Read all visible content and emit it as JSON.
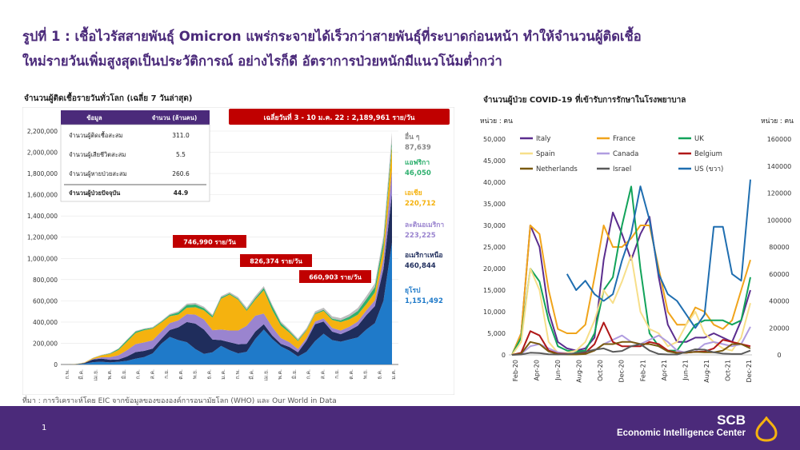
{
  "headline": {
    "line1": "รูปที่ 1 : เชื้อไวรัสสายพันธุ์ Omicron แพร่กระจายได้เร็วกว่าสายพันธุ์ที่ระบาดก่อนหน้า ทำให้จำนวนผู้ติดเชื้อ",
    "line2": "ใหม่รายวันเพิ่มสูงสุดเป็นประวัติการณ์ อย่างไรก็ดี อัตราการป่วยหนักมีแนวโน้มต่ำกว่า"
  },
  "source": "ที่มา : การวิเคราะห์โดย EIC จากข้อมูลของขององค์การอนามัยโลก (WHO) และ Our World in Data",
  "footer": {
    "page": "1",
    "brand": "SCB",
    "brand_sub": "Economic Intelligence Center"
  },
  "colors": {
    "purple": "#4b2a7a",
    "red_label": "#c00000",
    "navy": "#1f2d5c"
  },
  "chart_data": [
    {
      "type": "area",
      "title": "จำนวนผู้ติดเชื้อรายวันทั่วโลก (เฉลี่ย 7 วันล่าสุด)",
      "y_ticks": [
        "0",
        "200,000",
        "400,000",
        "600,000",
        "800,000",
        "1,000,000",
        "1,200,000",
        "1,400,000",
        "1,600,000",
        "1,800,000",
        "2,000,000",
        "2,200,000"
      ],
      "ylim": [
        0,
        2200000
      ],
      "x_ticks": [
        "ก.พ.",
        "มี.ค.",
        "เม.ย.",
        "พ.ค.",
        "มิ.ย.",
        "ก.ค.",
        "ส.ค.",
        "ก.ย.",
        "ต.ค.",
        "พ.ย.",
        "ธ.ค.",
        "ม.ค.",
        "ก.พ.",
        "มี.ค.",
        "เม.ย.",
        "พ.ค.",
        "มิ.ย.",
        "ก.ค.",
        "ส.ค.",
        "ก.ย.",
        "ต.ค.",
        "พ.ย.",
        "ธ.ค.",
        "ม.ค."
      ],
      "series": [
        {
          "name": "ยุโรป",
          "label": "ยุโรป",
          "value": "1,151,492",
          "color": "#1f7ac9",
          "values": [
            0,
            2,
            8,
            22,
            26,
            20,
            25,
            35,
            55,
            70,
            105,
            195,
            260,
            230,
            210,
            145,
            100,
            115,
            175,
            135,
            105,
            120,
            240,
            330,
            240,
            170,
            130,
            75,
            120,
            220,
            290,
            230,
            215,
            235,
            255,
            330,
            390,
            600,
            1150
          ]
        },
        {
          "name": "อเมริกาเหนือ",
          "label": "อเมริกาเหนือ",
          "value": "460,844",
          "color": "#1f2d5c",
          "values": [
            0,
            1,
            5,
            25,
            30,
            24,
            22,
            40,
            62,
            58,
            45,
            45,
            65,
            120,
            190,
            240,
            230,
            120,
            55,
            75,
            85,
            75,
            70,
            50,
            32,
            25,
            35,
            40,
            105,
            160,
            115,
            80,
            70,
            85,
            110,
            135,
            160,
            300,
            461
          ]
        },
        {
          "name": "ละตินอเมริกา",
          "label": "ละตินอเมริกา",
          "value": "223,225",
          "color": "#9a84cf",
          "values": [
            0,
            0,
            1,
            4,
            12,
            25,
            40,
            60,
            75,
            80,
            78,
            70,
            65,
            65,
            75,
            85,
            95,
            88,
            100,
            110,
            130,
            170,
            150,
            100,
            80,
            55,
            45,
            30,
            25,
            25,
            30,
            35,
            35,
            35,
            40,
            45,
            55,
            95,
            223
          ]
        },
        {
          "name": "เอเชีย",
          "label": "เอเชีย",
          "value": "220,712",
          "color": "#f5b20f",
          "values": [
            0,
            2,
            4,
            9,
            18,
            30,
            50,
            80,
            105,
            115,
            110,
            85,
            65,
            55,
            60,
            70,
            85,
            120,
            290,
            340,
            290,
            140,
            150,
            220,
            160,
            115,
            90,
            75,
            70,
            70,
            70,
            75,
            80,
            70,
            65,
            60,
            75,
            110,
            221
          ]
        },
        {
          "name": "แอฟริกา",
          "label": "แอฟริกา",
          "value": "46,050",
          "color": "#2eb06e",
          "values": [
            0,
            0,
            0,
            1,
            2,
            5,
            10,
            15,
            13,
            10,
            8,
            8,
            12,
            20,
            25,
            25,
            20,
            15,
            12,
            10,
            10,
            12,
            15,
            20,
            35,
            25,
            15,
            10,
            8,
            8,
            10,
            12,
            15,
            25,
            35,
            45,
            50,
            60,
            46
          ]
        },
        {
          "name": "อื่น ๆ",
          "label": "อื่น ๆ",
          "value": "87,639",
          "color": "#bdbdbd",
          "values": [
            0,
            0,
            1,
            2,
            3,
            4,
            5,
            6,
            6,
            6,
            7,
            8,
            10,
            12,
            14,
            15,
            14,
            12,
            12,
            12,
            15,
            18,
            20,
            18,
            15,
            15,
            14,
            14,
            15,
            18,
            20,
            22,
            22,
            24,
            28,
            30,
            35,
            50,
            88
          ]
        }
      ],
      "table": {
        "headers": [
          "ข้อมูล",
          "จำนวน (ล้านคน)"
        ],
        "rows": [
          {
            "label": "จำนวนผู้ติดเชื้อสะสม",
            "value": "311.0"
          },
          {
            "label": "จำนวนผู้เสียชีวิตสะสม",
            "value": "5.5"
          },
          {
            "label": "จำนวนผู้หายป่วยสะสม",
            "value": "260.6"
          },
          {
            "label": "จำนวนผู้ป่วยปัจจุบัน",
            "value": "44.9"
          }
        ]
      },
      "banner": "เฉลี่ยวันที่ 3 - 10 ม.ค. 22 : 2,189,961 ราย/วัน",
      "annotations": [
        "746,990 ราย/วัน",
        "826,374 ราย/วัน",
        "660,903 ราย/วัน"
      ]
    },
    {
      "type": "line",
      "title": "จำนวนผู้ป่วย COVID-19 ที่เข้ารับการรักษาในโรงพยาบาล",
      "unit_left": "หน่วย : คน",
      "unit_right": "หน่วย : คน",
      "ylim_left": [
        0,
        50000
      ],
      "ylim_right": [
        0,
        160000
      ],
      "y_ticks_left": [
        "0",
        "5,000",
        "10,000",
        "15,000",
        "20,000",
        "25,000",
        "30,000",
        "35,000",
        "40,000",
        "45,000",
        "50,000"
      ],
      "y_ticks_right": [
        "0",
        "20000",
        "40000",
        "60000",
        "80000",
        "100000",
        "120000",
        "140000",
        "160000"
      ],
      "x_ticks": [
        "Feb-20",
        "Apr-20",
        "Jun-20",
        "Aug-20",
        "Oct-20",
        "Dec-20",
        "Feb-21",
        "Apr-21",
        "Jun-21",
        "Aug-21",
        "Oct-21",
        "Dec-21"
      ],
      "series": [
        {
          "name": "Italy",
          "color": "#5b2d8e",
          "axis": "left",
          "values": [
            0,
            5000,
            30000,
            25000,
            10000,
            3000,
            1500,
            1000,
            1500,
            4000,
            22000,
            33000,
            28000,
            22000,
            28000,
            32000,
            18000,
            7000,
            3000,
            3000,
            4000,
            4000,
            5000,
            4000,
            3000,
            8000,
            15000
          ]
        },
        {
          "name": "France",
          "color": "#f0a41b",
          "axis": "left",
          "values": [
            0,
            5000,
            30000,
            28000,
            15000,
            6000,
            5000,
            5000,
            7000,
            18000,
            30000,
            25000,
            25000,
            27000,
            30000,
            30000,
            20000,
            10000,
            7000,
            7000,
            11000,
            10000,
            7000,
            6000,
            8000,
            15000,
            22000
          ]
        },
        {
          "name": "UK",
          "color": "#12a35a",
          "axis": "left",
          "values": [
            0,
            4000,
            20000,
            17000,
            8000,
            2000,
            1000,
            800,
            1000,
            5000,
            15000,
            18000,
            30000,
            39000,
            20000,
            5000,
            2000,
            1000,
            1000,
            4000,
            7000,
            8000,
            8000,
            8000,
            7000,
            8000,
            18000
          ]
        },
        {
          "name": "Spain",
          "color": "#f7df8a",
          "axis": "left",
          "values": [
            0,
            3000,
            20000,
            15000,
            3000,
            500,
            500,
            1000,
            3000,
            8000,
            15000,
            12000,
            17000,
            23000,
            10000,
            6000,
            5000,
            2000,
            3000,
            7000,
            10000,
            5000,
            3000,
            1500,
            1000,
            4000,
            12000
          ]
        },
        {
          "name": "Canada",
          "color": "#b09de0",
          "axis": "left",
          "values": [
            0,
            200,
            2000,
            2500,
            1500,
            600,
            300,
            200,
            300,
            1000,
            2500,
            3500,
            4500,
            3000,
            2500,
            3500,
            4500,
            3000,
            1000,
            500,
            800,
            2500,
            3000,
            2500,
            2000,
            2500,
            6500
          ]
        },
        {
          "name": "Belgium",
          "color": "#b01717",
          "axis": "left",
          "values": [
            0,
            500,
            5500,
            4500,
            1000,
            300,
            200,
            200,
            500,
            2500,
            7500,
            3000,
            2000,
            2000,
            2000,
            3000,
            2500,
            1000,
            500,
            500,
            700,
            800,
            1500,
            3500,
            3000,
            2500,
            2000
          ]
        },
        {
          "name": "Netherlands",
          "color": "#7a5a10",
          "axis": "left",
          "values": [
            0,
            300,
            3000,
            2500,
            800,
            200,
            100,
            100,
            200,
            1000,
            2500,
            2500,
            3000,
            3000,
            2500,
            2500,
            2000,
            800,
            400,
            500,
            700,
            600,
            600,
            1000,
            2500,
            2500,
            1500
          ]
        },
        {
          "name": "Israel",
          "color": "#5a5a5a",
          "axis": "left",
          "values": [
            0,
            100,
            500,
            400,
            150,
            100,
            150,
            400,
            700,
            1200,
            1500,
            700,
            900,
            2000,
            2500,
            1000,
            200,
            100,
            100,
            700,
            1300,
            1200,
            600,
            300,
            200,
            200,
            1000
          ]
        },
        {
          "name": "US (ขวา)",
          "color": "#1f6eb0",
          "axis": "right",
          "values": [
            null,
            null,
            null,
            null,
            null,
            null,
            60000,
            48000,
            55000,
            45000,
            40000,
            45000,
            70000,
            90000,
            125000,
            100000,
            60000,
            45000,
            40000,
            30000,
            20000,
            30000,
            95000,
            95000,
            60000,
            55000,
            130000
          ]
        }
      ]
    }
  ]
}
